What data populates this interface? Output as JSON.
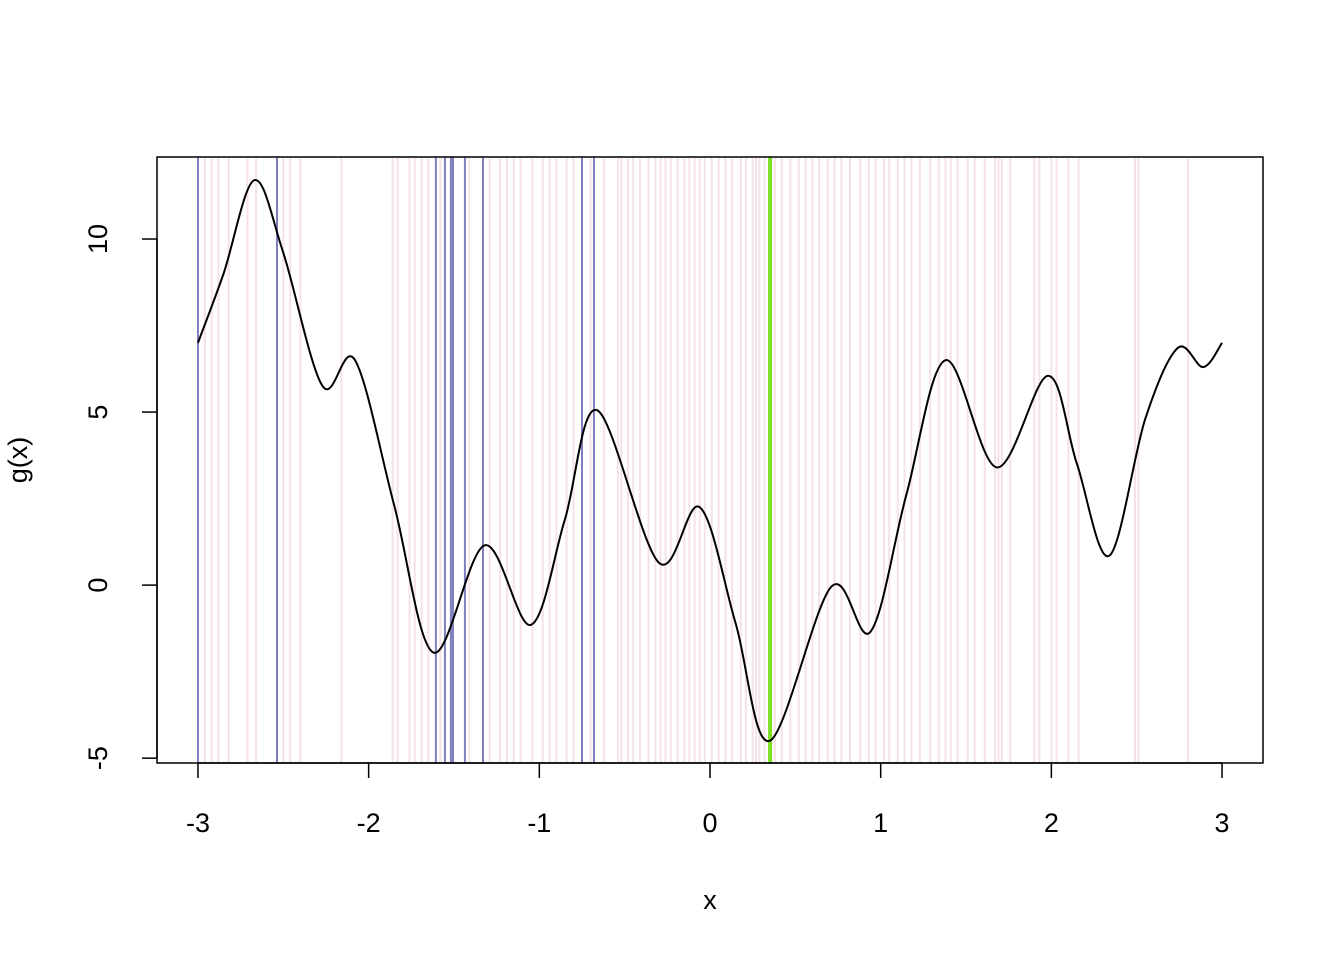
{
  "chart_data": {
    "type": "line",
    "x_label": "x",
    "y_label": "g(x)",
    "xlim": [
      -3.24,
      3.24
    ],
    "ylim": [
      -5.14,
      12.37
    ],
    "xticks": [
      -3,
      -2,
      -1,
      0,
      1,
      2,
      3
    ],
    "yticks": [
      -5,
      0,
      5,
      10
    ],
    "vlines": [
      {
        "color": "#c0606e",
        "opacity": 0.18,
        "width": 2,
        "x": [
          -2.96,
          -2.92,
          -2.88,
          -2.82,
          -2.71,
          -2.66,
          -2.5,
          -2.46,
          -2.4,
          -2.16,
          -1.86,
          -1.83,
          -1.76,
          -1.73,
          -1.69,
          -1.65,
          -1.58,
          -1.41,
          -1.29,
          -1.23,
          -1.19,
          -1.15,
          -1.11,
          -1.04,
          -0.98,
          -0.94,
          -0.9,
          -0.84,
          -0.8,
          -0.7,
          -0.62,
          -0.54,
          -0.52,
          -0.48,
          -0.45,
          -0.41,
          -0.36,
          -0.32,
          -0.29,
          -0.26,
          -0.23,
          -0.19,
          -0.15,
          -0.12,
          -0.09,
          -0.06,
          -0.03,
          0.01,
          0.05,
          0.09,
          0.13,
          0.18,
          0.21,
          0.25,
          0.27,
          0.29,
          0.32,
          0.38,
          0.42,
          0.47,
          0.52,
          0.56,
          0.6,
          0.64,
          0.69,
          0.73,
          0.77,
          0.82,
          0.88,
          0.93,
          0.97,
          1.02,
          1.05,
          1.1,
          1.14,
          1.18,
          1.23,
          1.29,
          1.34,
          1.38,
          1.41,
          1.45,
          1.51,
          1.55,
          1.61,
          1.67,
          1.69,
          1.71,
          1.76,
          1.9,
          1.93,
          2.0,
          2.03,
          2.1,
          2.16,
          2.49,
          2.51,
          2.8
        ]
      },
      {
        "color": "#3b3b9e",
        "opacity": 0.65,
        "width": 2,
        "x": [
          -3.0,
          -2.537,
          -1.606,
          -1.553,
          -1.518,
          -1.506,
          -1.436,
          -1.33,
          -0.75,
          -0.68
        ]
      },
      {
        "color": "#7ee020",
        "opacity": 1,
        "width": 4,
        "x": [
          0.352
        ]
      }
    ],
    "x": [
      -3,
      -2.85,
      -2.67,
      -2.5,
      -2.27,
      -2.08,
      -1.85,
      -1.62,
      -1.32,
      -1.05,
      -0.85,
      -0.66,
      -0.3,
      -0.06,
      0.15,
      0.35,
      0.71,
      0.94,
      1.15,
      1.38,
      1.68,
      1.98,
      2.15,
      2.34,
      2.55,
      2.74,
      2.89,
      3
    ],
    "series": [
      {
        "color": "#000000",
        "values": [
          7.0,
          9.0,
          11.7,
          9.6,
          5.75,
          6.5,
          2.3,
          -1.95,
          1.15,
          -1.15,
          1.9,
          5.05,
          0.65,
          2.25,
          -1.1,
          -4.5,
          -0.05,
          -1.35,
          2.6,
          6.5,
          3.4,
          6.05,
          3.5,
          0.85,
          4.8,
          6.85,
          6.3,
          7.0
        ]
      }
    ]
  }
}
